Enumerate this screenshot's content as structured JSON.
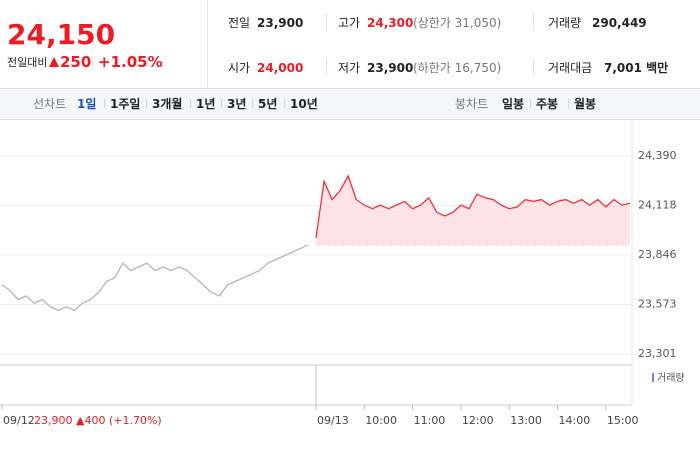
{
  "quote": {
    "price": "24,150",
    "change_label": "전일대비",
    "change": "250",
    "change_rate": "+1.05%",
    "prev_close_label": "전일",
    "prev_close": "23,900",
    "high_label": "고가",
    "high": "24,300",
    "upper_limit": "(상한가 31,050)",
    "volume_label": "거래량",
    "volume": "290,449",
    "open_label": "시가",
    "open": "24,000",
    "low_label": "저가",
    "low": "23,900",
    "lower_limit": "(하한가 16,750)",
    "amount_label": "거래대금",
    "amount": "7,001 백만"
  },
  "tabs": {
    "line_label": "선차트",
    "line_periods": [
      "1일",
      "1주일",
      "3개월",
      "1년",
      "3년",
      "5년",
      "10년"
    ],
    "candle_label": "봉차트",
    "candle_periods": [
      "일봉",
      "주봉",
      "월봉"
    ]
  },
  "chart_data": {
    "type": "line",
    "x": [
      -390,
      -380,
      -370,
      -360,
      -350,
      -340,
      -330,
      -320,
      -310,
      -300,
      -290,
      -280,
      -270,
      -260,
      -250,
      -240,
      -230,
      -220,
      -210,
      -200,
      -190,
      -180,
      -170,
      -160,
      -150,
      -140,
      -130,
      -120,
      -110,
      -100,
      -90,
      -80,
      -70,
      -60,
      -50,
      -40,
      -30,
      -20,
      -10,
      0,
      10,
      20,
      30,
      40,
      50,
      60,
      70,
      80,
      90,
      100,
      110,
      120,
      130,
      140,
      150,
      160,
      170,
      180,
      190,
      200,
      210,
      220,
      230,
      240,
      250,
      260,
      270,
      280,
      290,
      300,
      310,
      320,
      330,
      340,
      350,
      360,
      370,
      380,
      390
    ],
    "series": [
      {
        "name": "09/12",
        "color": "#b4b4b4",
        "values": [
          23680,
          23650,
          23600,
          23620,
          23580,
          23600,
          23560,
          23540,
          23560,
          23540,
          23580,
          23600,
          23640,
          23700,
          23720,
          23800,
          23760,
          23780,
          23800,
          23760,
          23780,
          23760,
          23780,
          23760,
          23720,
          23680,
          23640,
          23620,
          23680,
          23700,
          23720,
          23740,
          23760,
          23800,
          23820,
          23840,
          23860,
          23880,
          23900,
          null,
          null,
          null,
          null,
          null,
          null,
          null,
          null,
          null,
          null,
          null,
          null,
          null,
          null,
          null,
          null,
          null,
          null,
          null,
          null,
          null,
          null,
          null,
          null,
          null,
          null,
          null,
          null,
          null,
          null,
          null,
          null,
          null,
          null,
          null,
          null,
          null,
          null,
          null,
          null
        ]
      },
      {
        "name": "09/13",
        "color": "#f0313a",
        "values": [
          null,
          null,
          null,
          null,
          null,
          null,
          null,
          null,
          null,
          null,
          null,
          null,
          null,
          null,
          null,
          null,
          null,
          null,
          null,
          null,
          null,
          null,
          null,
          null,
          null,
          null,
          null,
          null,
          null,
          null,
          null,
          null,
          null,
          null,
          null,
          null,
          null,
          null,
          null,
          23940,
          24250,
          24150,
          24200,
          24280,
          24150,
          24120,
          24100,
          24120,
          24100,
          24120,
          24140,
          24100,
          24120,
          24160,
          24080,
          24060,
          24080,
          24120,
          24100,
          24180,
          24160,
          24150,
          24120,
          24100,
          24110,
          24150,
          24140,
          24150,
          24120,
          24140,
          24150,
          24130,
          24150,
          24120,
          24150,
          24110,
          24150,
          24120,
          24130
        ]
      }
    ],
    "baseline": 23900,
    "xlim": [
      -392.5,
      392.5
    ],
    "xticks": [
      {
        "value": -390,
        "label": "09/12"
      },
      {
        "value": 0,
        "label": "09/13"
      },
      {
        "value": 60,
        "label": "10:00"
      },
      {
        "value": 120,
        "label": "11:00"
      },
      {
        "value": 180,
        "label": "12:00"
      },
      {
        "value": 240,
        "label": "13:00"
      },
      {
        "value": 300,
        "label": "14:00"
      },
      {
        "value": 360,
        "label": "15:00"
      }
    ],
    "ylim": [
      23240,
      24544
    ],
    "yticks": [
      {
        "value": 23301,
        "label": "23,301"
      },
      {
        "value": 23573,
        "label": "23,573"
      },
      {
        "value": 23846,
        "label": "23,846"
      },
      {
        "value": 24118,
        "label": "24,118"
      },
      {
        "value": 24390,
        "label": "24,390"
      }
    ],
    "grid": true,
    "volume_legend": "거래량",
    "prev_summary": "23,900 ▲400 (+1.70%)"
  }
}
